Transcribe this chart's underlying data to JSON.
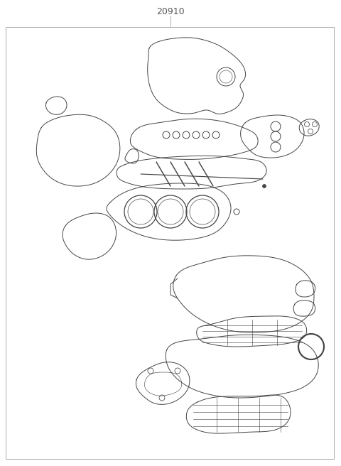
{
  "title": "20910",
  "title_fontsize": 9,
  "title_color": "#555555",
  "bg_color": "#ffffff",
  "border_color": "#aaaaaa",
  "line_color": "#444444",
  "line_width": 0.7,
  "fig_width": 4.8,
  "fig_height": 6.56,
  "dpi": 100
}
